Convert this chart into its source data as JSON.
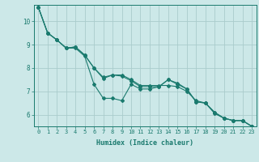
{
  "xlabel": "Humidex (Indice chaleur)",
  "bg_color": "#cce8e8",
  "grid_color": "#aacccc",
  "line_color": "#1a7a6e",
  "xlim": [
    -0.5,
    23.5
  ],
  "ylim": [
    5.5,
    10.7
  ],
  "yticks": [
    6,
    7,
    8,
    9,
    10
  ],
  "xticks": [
    0,
    1,
    2,
    3,
    4,
    5,
    6,
    7,
    8,
    9,
    10,
    11,
    12,
    13,
    14,
    15,
    16,
    17,
    18,
    19,
    20,
    21,
    22,
    23
  ],
  "series": [
    [
      10.6,
      9.5,
      9.2,
      8.85,
      8.85,
      8.5,
      7.3,
      6.7,
      6.7,
      6.6,
      7.3,
      7.1,
      7.1,
      7.2,
      7.5,
      7.3,
      7.1,
      6.55,
      6.5,
      6.1,
      5.85,
      5.75,
      5.75,
      5.5
    ],
    [
      10.6,
      9.5,
      9.2,
      8.85,
      8.9,
      8.55,
      8.0,
      7.55,
      7.7,
      7.7,
      7.5,
      7.25,
      7.25,
      7.25,
      7.25,
      7.2,
      7.0,
      6.6,
      6.5,
      6.1,
      5.85,
      5.75,
      5.75,
      5.5
    ],
    [
      10.6,
      9.5,
      9.2,
      8.85,
      8.9,
      8.55,
      8.0,
      7.6,
      7.7,
      7.65,
      7.45,
      7.2,
      7.2,
      7.2,
      7.5,
      7.35,
      7.1,
      6.55,
      6.5,
      6.05,
      5.85,
      5.75,
      5.75,
      5.5
    ]
  ]
}
